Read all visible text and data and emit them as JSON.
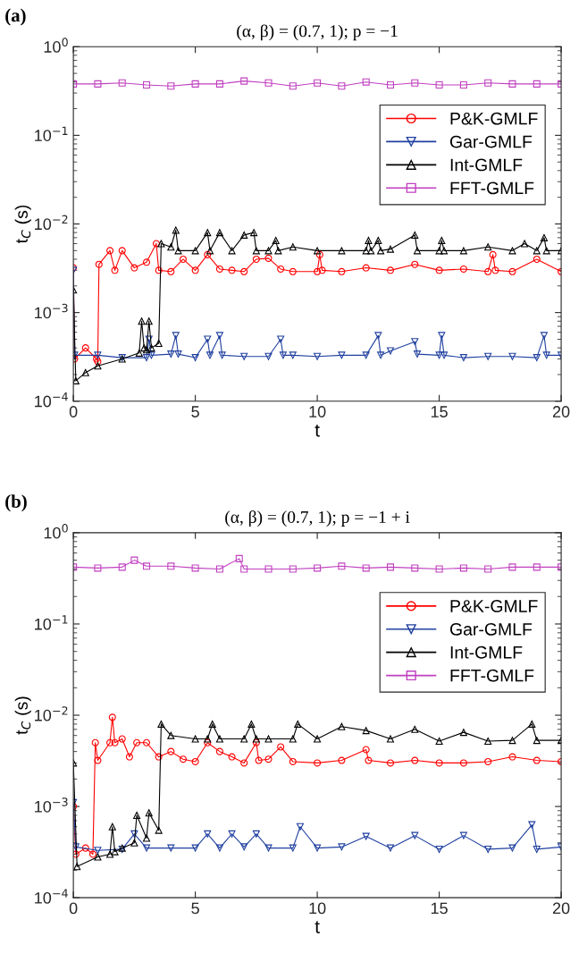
{
  "chart_data": [
    {
      "type": "line",
      "title": "(α, β) = (0.7, 1); p = −1",
      "xlabel": "t",
      "ylabel": "t$_{C}$ (s)",
      "annotations": [
        "(a)"
      ],
      "log": "y",
      "xlim": [
        0,
        20
      ],
      "xticks": [
        0,
        5,
        10,
        15,
        20
      ],
      "ylim": [
        0.0001,
        1
      ],
      "yticks": [
        {
          "value": 0.0001,
          "label": "10$^{−4}$"
        },
        {
          "value": 0.001,
          "label": "10$^{−3}$"
        },
        {
          "value": 0.01,
          "label": "10$^{−2}$"
        },
        {
          "value": 0.1,
          "label": "10$^{−1}$"
        },
        {
          "value": 1,
          "label": "10$^{0}$"
        }
      ],
      "grid": false,
      "legend": "top right",
      "series": [
        {
          "name": "P&K-GMLF",
          "color": "#ff0000",
          "marker": "circle",
          "x": [
            0,
            0.05,
            0.5,
            0.95,
            1,
            1.05,
            1.5,
            1.7,
            2,
            2.5,
            3,
            3.4,
            3.5,
            4,
            4.5,
            5,
            5.5,
            6,
            6.5,
            7,
            7.5,
            8,
            8.5,
            9,
            10,
            10.1,
            10.2,
            11,
            12,
            13,
            14,
            15,
            16,
            17,
            17.2,
            17.3,
            18,
            19,
            20
          ],
          "values": [
            0.0032,
            0.0003,
            0.0004,
            0.0003,
            0.00028,
            0.0035,
            0.005,
            0.003,
            0.005,
            0.0032,
            0.0037,
            0.006,
            0.003,
            0.0029,
            0.004,
            0.003,
            0.0045,
            0.0031,
            0.003,
            0.0029,
            0.004,
            0.0041,
            0.0031,
            0.0029,
            0.0029,
            0.0045,
            0.003,
            0.0029,
            0.0032,
            0.003,
            0.0035,
            0.003,
            0.0031,
            0.0029,
            0.0045,
            0.003,
            0.0029,
            0.004,
            0.0029
          ]
        },
        {
          "name": "Gar-GMLF",
          "color": "#2040a0",
          "marker": "triangle_down",
          "x": [
            0,
            0.05,
            1,
            2,
            3,
            3.1,
            3.2,
            4,
            4.2,
            4.3,
            5,
            5.5,
            5.6,
            6,
            6.1,
            7,
            8,
            8.5,
            8.6,
            9,
            10,
            11,
            12,
            12.5,
            12.6,
            13,
            14,
            14.1,
            15,
            15.1,
            15.2,
            16,
            17,
            18,
            19,
            19.3,
            19.4,
            20
          ],
          "values": [
            0.003,
            0.00033,
            0.00033,
            0.00031,
            0.00031,
            0.0005,
            0.00033,
            0.00034,
            0.00055,
            0.00034,
            0.00031,
            0.0005,
            0.00033,
            0.00055,
            0.00033,
            0.00032,
            0.00032,
            0.0005,
            0.00033,
            0.00033,
            0.00032,
            0.00033,
            0.00033,
            0.00055,
            0.00033,
            0.00037,
            0.00047,
            0.00034,
            0.00033,
            0.00055,
            0.00033,
            0.00031,
            0.00032,
            0.00032,
            0.00031,
            0.00055,
            0.00033,
            0.00033
          ]
        },
        {
          "name": "Int-GMLF",
          "color": "#000000",
          "marker": "triangle",
          "x": [
            0,
            0.1,
            0.5,
            1,
            2,
            2.7,
            2.8,
            2.9,
            3,
            3.1,
            3.2,
            3.5,
            3.6,
            4,
            4.2,
            4.3,
            5,
            5.5,
            5.6,
            6,
            6.5,
            7,
            7.4,
            7.5,
            8,
            8.3,
            8.4,
            9,
            10,
            11,
            12,
            12.1,
            12.2,
            12.5,
            12.6,
            13,
            14,
            14.1,
            15,
            15.1,
            15.2,
            16,
            17,
            18,
            18.5,
            19,
            19.3,
            19.4,
            20
          ],
          "values": [
            0.0018,
            0.00017,
            0.00021,
            0.00025,
            0.0003,
            0.00035,
            0.0008,
            0.0004,
            0.00038,
            0.0008,
            0.0004,
            0.00045,
            0.006,
            0.0055,
            0.0085,
            0.005,
            0.005,
            0.008,
            0.005,
            0.008,
            0.005,
            0.0075,
            0.008,
            0.005,
            0.005,
            0.0065,
            0.005,
            0.0055,
            0.005,
            0.005,
            0.005,
            0.0065,
            0.005,
            0.0065,
            0.005,
            0.0052,
            0.0075,
            0.005,
            0.005,
            0.0065,
            0.005,
            0.005,
            0.0055,
            0.005,
            0.006,
            0.005,
            0.007,
            0.005,
            0.005
          ]
        },
        {
          "name": "FFT-GMLF",
          "color": "#c040c0",
          "marker": "square",
          "x": [
            0,
            1,
            2,
            3,
            4,
            5,
            6,
            7,
            8,
            9,
            10,
            11,
            12,
            13,
            14,
            15,
            16,
            17,
            18,
            19,
            20
          ],
          "values": [
            0.38,
            0.38,
            0.39,
            0.37,
            0.36,
            0.38,
            0.38,
            0.41,
            0.39,
            0.36,
            0.39,
            0.36,
            0.4,
            0.37,
            0.39,
            0.37,
            0.37,
            0.39,
            0.38,
            0.38,
            0.38
          ]
        }
      ]
    },
    {
      "type": "line",
      "title": "(α, β) = (0.7, 1); p = −1 + i",
      "xlabel": "t",
      "ylabel": "t$_{C}$ (s)",
      "annotations": [
        "(b)"
      ],
      "log": "y",
      "xlim": [
        0,
        20
      ],
      "xticks": [
        0,
        5,
        10,
        15,
        20
      ],
      "ylim": [
        0.0001,
        1
      ],
      "yticks": [
        {
          "value": 0.0001,
          "label": "10$^{−4}$"
        },
        {
          "value": 0.001,
          "label": "10$^{−3}$"
        },
        {
          "value": 0.01,
          "label": "10$^{−2}$"
        },
        {
          "value": 0.1,
          "label": "10$^{−1}$"
        },
        {
          "value": 1,
          "label": "10$^{0}$"
        }
      ],
      "grid": false,
      "legend": "top right",
      "series": [
        {
          "name": "P&K-GMLF",
          "color": "#ff0000",
          "marker": "circle",
          "x": [
            0,
            0.1,
            0.5,
            0.8,
            0.9,
            1,
            1.5,
            1.6,
            1.7,
            2,
            2.3,
            2.6,
            3,
            3.5,
            4,
            4.5,
            5,
            5.5,
            6,
            6.5,
            7,
            7.5,
            7.6,
            8,
            8.5,
            9,
            10,
            11,
            12,
            12.1,
            13,
            14,
            15,
            16,
            17,
            18,
            19,
            20
          ],
          "values": [
            0.001,
            0.0003,
            0.00035,
            0.0003,
            0.005,
            0.0032,
            0.005,
            0.0095,
            0.005,
            0.0055,
            0.0035,
            0.005,
            0.005,
            0.0035,
            0.004,
            0.0033,
            0.0031,
            0.005,
            0.004,
            0.0035,
            0.003,
            0.005,
            0.0032,
            0.0033,
            0.0045,
            0.0031,
            0.003,
            0.0032,
            0.0042,
            0.0032,
            0.003,
            0.0032,
            0.003,
            0.003,
            0.0031,
            0.0035,
            0.0032,
            0.0031
          ]
        },
        {
          "name": "Gar-GMLF",
          "color": "#2040a0",
          "marker": "triangle_down",
          "x": [
            0,
            0.1,
            1,
            2,
            2.5,
            3,
            4,
            5,
            5.5,
            6,
            6.5,
            7,
            7.5,
            8,
            9,
            9.3,
            10,
            11,
            12,
            13,
            14,
            15,
            16,
            17,
            18,
            18.8,
            19,
            20
          ],
          "values": [
            0.0011,
            0.00036,
            0.00033,
            0.00034,
            0.0005,
            0.00035,
            0.00035,
            0.00035,
            0.0005,
            0.00035,
            0.0005,
            0.00036,
            0.0005,
            0.00035,
            0.00035,
            0.0006,
            0.00035,
            0.00036,
            0.00047,
            0.00035,
            0.00048,
            0.00034,
            0.00048,
            0.00034,
            0.00035,
            0.00063,
            0.00034,
            0.00036
          ]
        },
        {
          "name": "Int-GMLF",
          "color": "#000000",
          "marker": "triangle",
          "x": [
            0,
            0.15,
            1,
            1.5,
            1.6,
            1.7,
            2,
            2.5,
            2.6,
            3,
            3.1,
            3.5,
            3.6,
            4,
            5,
            5.5,
            5.7,
            6,
            7,
            7.3,
            7.5,
            8,
            9,
            9.2,
            10,
            11,
            12,
            13,
            14,
            15,
            16,
            17,
            18,
            18.8,
            19,
            20
          ],
          "values": [
            0.003,
            0.00022,
            0.00028,
            0.0003,
            0.0006,
            0.00032,
            0.00035,
            0.0004,
            0.0008,
            0.00045,
            0.00085,
            0.00055,
            0.008,
            0.006,
            0.0055,
            0.0055,
            0.008,
            0.0055,
            0.0055,
            0.008,
            0.0055,
            0.0055,
            0.0055,
            0.008,
            0.0055,
            0.0075,
            0.0068,
            0.0055,
            0.007,
            0.0052,
            0.0065,
            0.0052,
            0.0053,
            0.008,
            0.0053,
            0.0053
          ]
        },
        {
          "name": "FFT-GMLF",
          "color": "#c040c0",
          "marker": "square",
          "x": [
            0,
            1,
            2,
            2.5,
            3,
            4,
            5,
            6,
            6.8,
            7,
            8,
            9,
            10,
            11,
            12,
            13,
            14,
            15,
            16,
            17,
            18,
            19,
            20
          ],
          "values": [
            0.42,
            0.41,
            0.42,
            0.5,
            0.43,
            0.43,
            0.41,
            0.4,
            0.52,
            0.4,
            0.4,
            0.4,
            0.41,
            0.43,
            0.41,
            0.42,
            0.41,
            0.4,
            0.41,
            0.4,
            0.42,
            0.42,
            0.42
          ]
        }
      ]
    }
  ]
}
